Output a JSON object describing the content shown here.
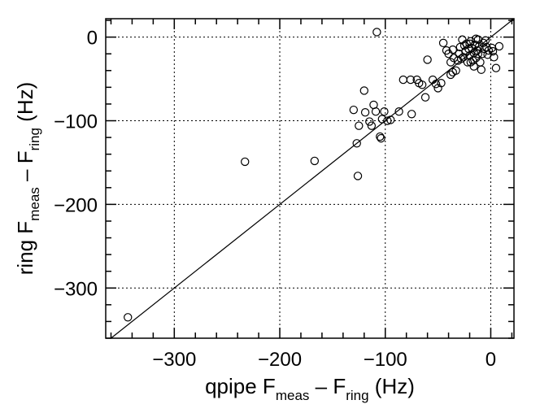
{
  "chart_data": {
    "type": "scatter",
    "title": "",
    "xlabel": {
      "main": "qpipe F",
      "sub1": "meas",
      "mid": " – F",
      "sub2": "ring",
      "tail": " (Hz)"
    },
    "ylabel": {
      "main": "ring F",
      "sub1": "meas",
      "mid": " – F",
      "sub2": "ring",
      "tail": " (Hz)"
    },
    "xlim": [
      -365,
      22
    ],
    "ylim": [
      -360,
      22
    ],
    "x_ticks": [
      -300,
      -200,
      -100,
      0
    ],
    "y_ticks": [
      -300,
      -200,
      -100,
      0
    ],
    "x_tick_labels": [
      "−300",
      "−200",
      "−100",
      "0"
    ],
    "y_tick_labels": [
      "−300",
      "−200",
      "−100",
      "0"
    ],
    "grid": true,
    "reference_line": "y = x",
    "marker": "open-circle",
    "points": [
      [
        -344,
        -335
      ],
      [
        -233,
        -149
      ],
      [
        -167,
        -148
      ],
      [
        -127,
        -127
      ],
      [
        -126,
        -166
      ],
      [
        -108,
        6
      ],
      [
        -120,
        -64
      ],
      [
        -130,
        -87
      ],
      [
        -125,
        -106
      ],
      [
        -119,
        -90
      ],
      [
        -115,
        -101
      ],
      [
        -113,
        -106
      ],
      [
        -111,
        -81
      ],
      [
        -109,
        -89
      ],
      [
        -103,
        -98
      ],
      [
        -101,
        -89
      ],
      [
        -98,
        -100
      ],
      [
        -95,
        -99
      ],
      [
        -104,
        -121
      ],
      [
        -105,
        -119
      ],
      [
        -87,
        -89
      ],
      [
        -83,
        -51
      ],
      [
        -76,
        -51
      ],
      [
        -75,
        -92
      ],
      [
        -70,
        -51
      ],
      [
        -68,
        -55
      ],
      [
        -65,
        -57
      ],
      [
        -62,
        -72
      ],
      [
        -60,
        -27
      ],
      [
        -55,
        -51
      ],
      [
        -52,
        -56
      ],
      [
        -50,
        -61
      ],
      [
        -47,
        -55
      ],
      [
        -45,
        -7
      ],
      [
        -40,
        -20
      ],
      [
        -38,
        -30
      ],
      [
        -38,
        -45
      ],
      [
        -36,
        -15
      ],
      [
        -35,
        -25
      ],
      [
        -33,
        -40
      ],
      [
        -31,
        -28
      ],
      [
        -30,
        -20
      ],
      [
        -29,
        -12
      ],
      [
        -27,
        -3
      ],
      [
        -26,
        -24
      ],
      [
        -24,
        -17
      ],
      [
        -23,
        -8
      ],
      [
        -22,
        -30
      ],
      [
        -21,
        -14
      ],
      [
        -20,
        -22
      ],
      [
        -19,
        -5
      ],
      [
        -18,
        -13
      ],
      [
        -17,
        -28
      ],
      [
        -16,
        -35
      ],
      [
        -16,
        -19
      ],
      [
        -15,
        -9
      ],
      [
        -14,
        -25
      ],
      [
        -13,
        -16
      ],
      [
        -12,
        -3
      ],
      [
        -11,
        -11
      ],
      [
        -10,
        -30
      ],
      [
        -9,
        -39
      ],
      [
        -8,
        -20
      ],
      [
        -7,
        -7
      ],
      [
        -6,
        -14
      ],
      [
        -5,
        -4
      ],
      [
        -4,
        -12
      ],
      [
        -3,
        -21
      ],
      [
        -2,
        -16
      ],
      [
        1,
        -13
      ],
      [
        2,
        -17
      ],
      [
        3,
        -24
      ],
      [
        5,
        -37
      ],
      [
        8,
        -11
      ],
      [
        -20,
        -8
      ],
      [
        -25,
        -10
      ],
      [
        -14,
        -2
      ],
      [
        -19,
        -30
      ],
      [
        -28,
        -26
      ],
      [
        -36,
        -42
      ],
      [
        -42,
        -16
      ],
      [
        -12,
        -20
      ]
    ]
  }
}
